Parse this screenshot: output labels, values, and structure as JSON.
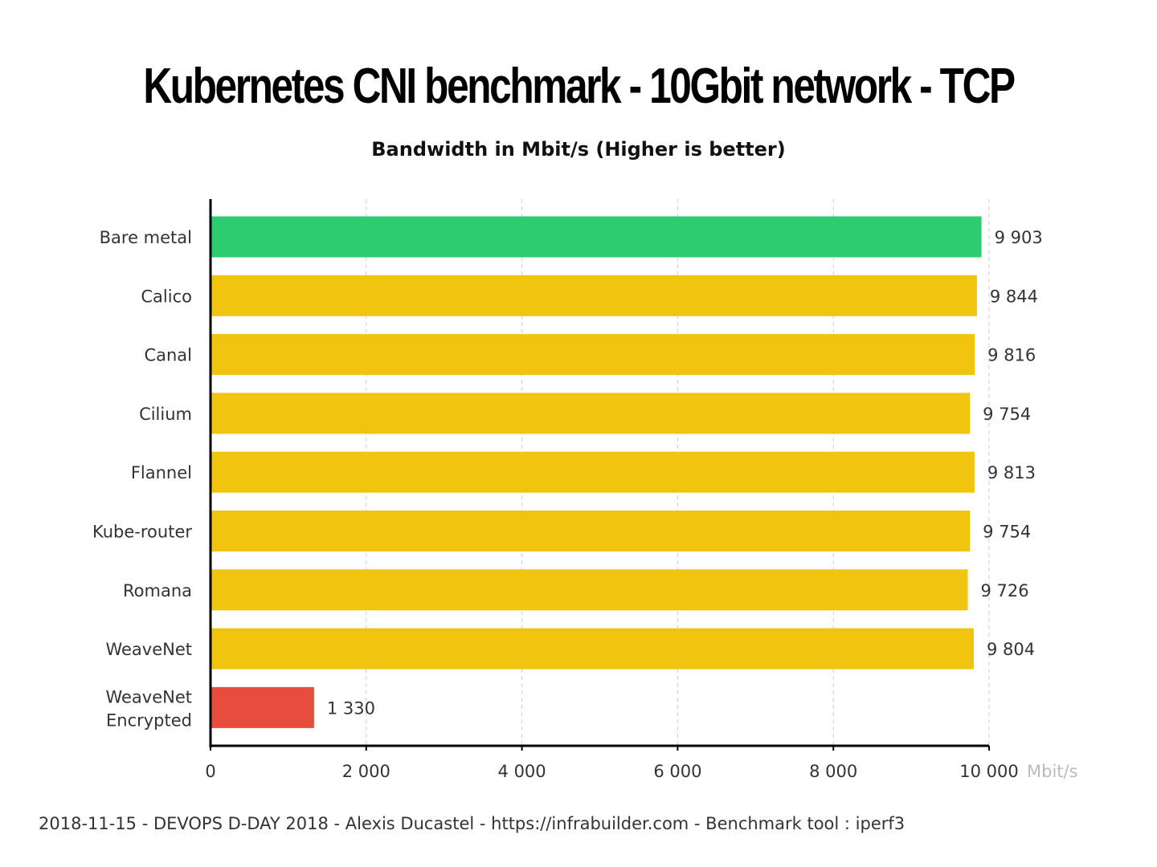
{
  "chart_data": {
    "type": "bar",
    "orientation": "horizontal",
    "title": "Kubernetes CNI benchmark - 10Gbit network - TCP",
    "subtitle": "Bandwidth in Mbit/s (Higher is better)",
    "categories": [
      "Bare metal",
      "Calico",
      "Canal",
      "Cilium",
      "Flannel",
      "Kube-router",
      "Romana",
      "WeaveNet",
      "WeaveNet Encrypted"
    ],
    "values": [
      9903,
      9844,
      9816,
      9754,
      9813,
      9754,
      9726,
      9804,
      1330
    ],
    "value_labels": [
      "9 903",
      "9 844",
      "9 816",
      "9 754",
      "9 813",
      "9 754",
      "9 726",
      "9 804",
      "1 330"
    ],
    "colors": [
      "#2ecc71",
      "#f1c40f",
      "#f1c40f",
      "#f1c40f",
      "#f1c40f",
      "#f1c40f",
      "#f1c40f",
      "#f1c40f",
      "#e74c3c"
    ],
    "xlim": [
      0,
      10000
    ],
    "xticks": [
      0,
      2000,
      4000,
      6000,
      8000,
      10000
    ],
    "xtick_labels": [
      "0",
      "2 000",
      "4 000",
      "6 000",
      "8 000",
      "10 000"
    ],
    "xunit": "Mbit/s",
    "grid": true
  },
  "footer": "2018-11-15 - DEVOPS D-DAY 2018 - Alexis Ducastel - https://infrabuilder.com - Benchmark tool : iperf3"
}
